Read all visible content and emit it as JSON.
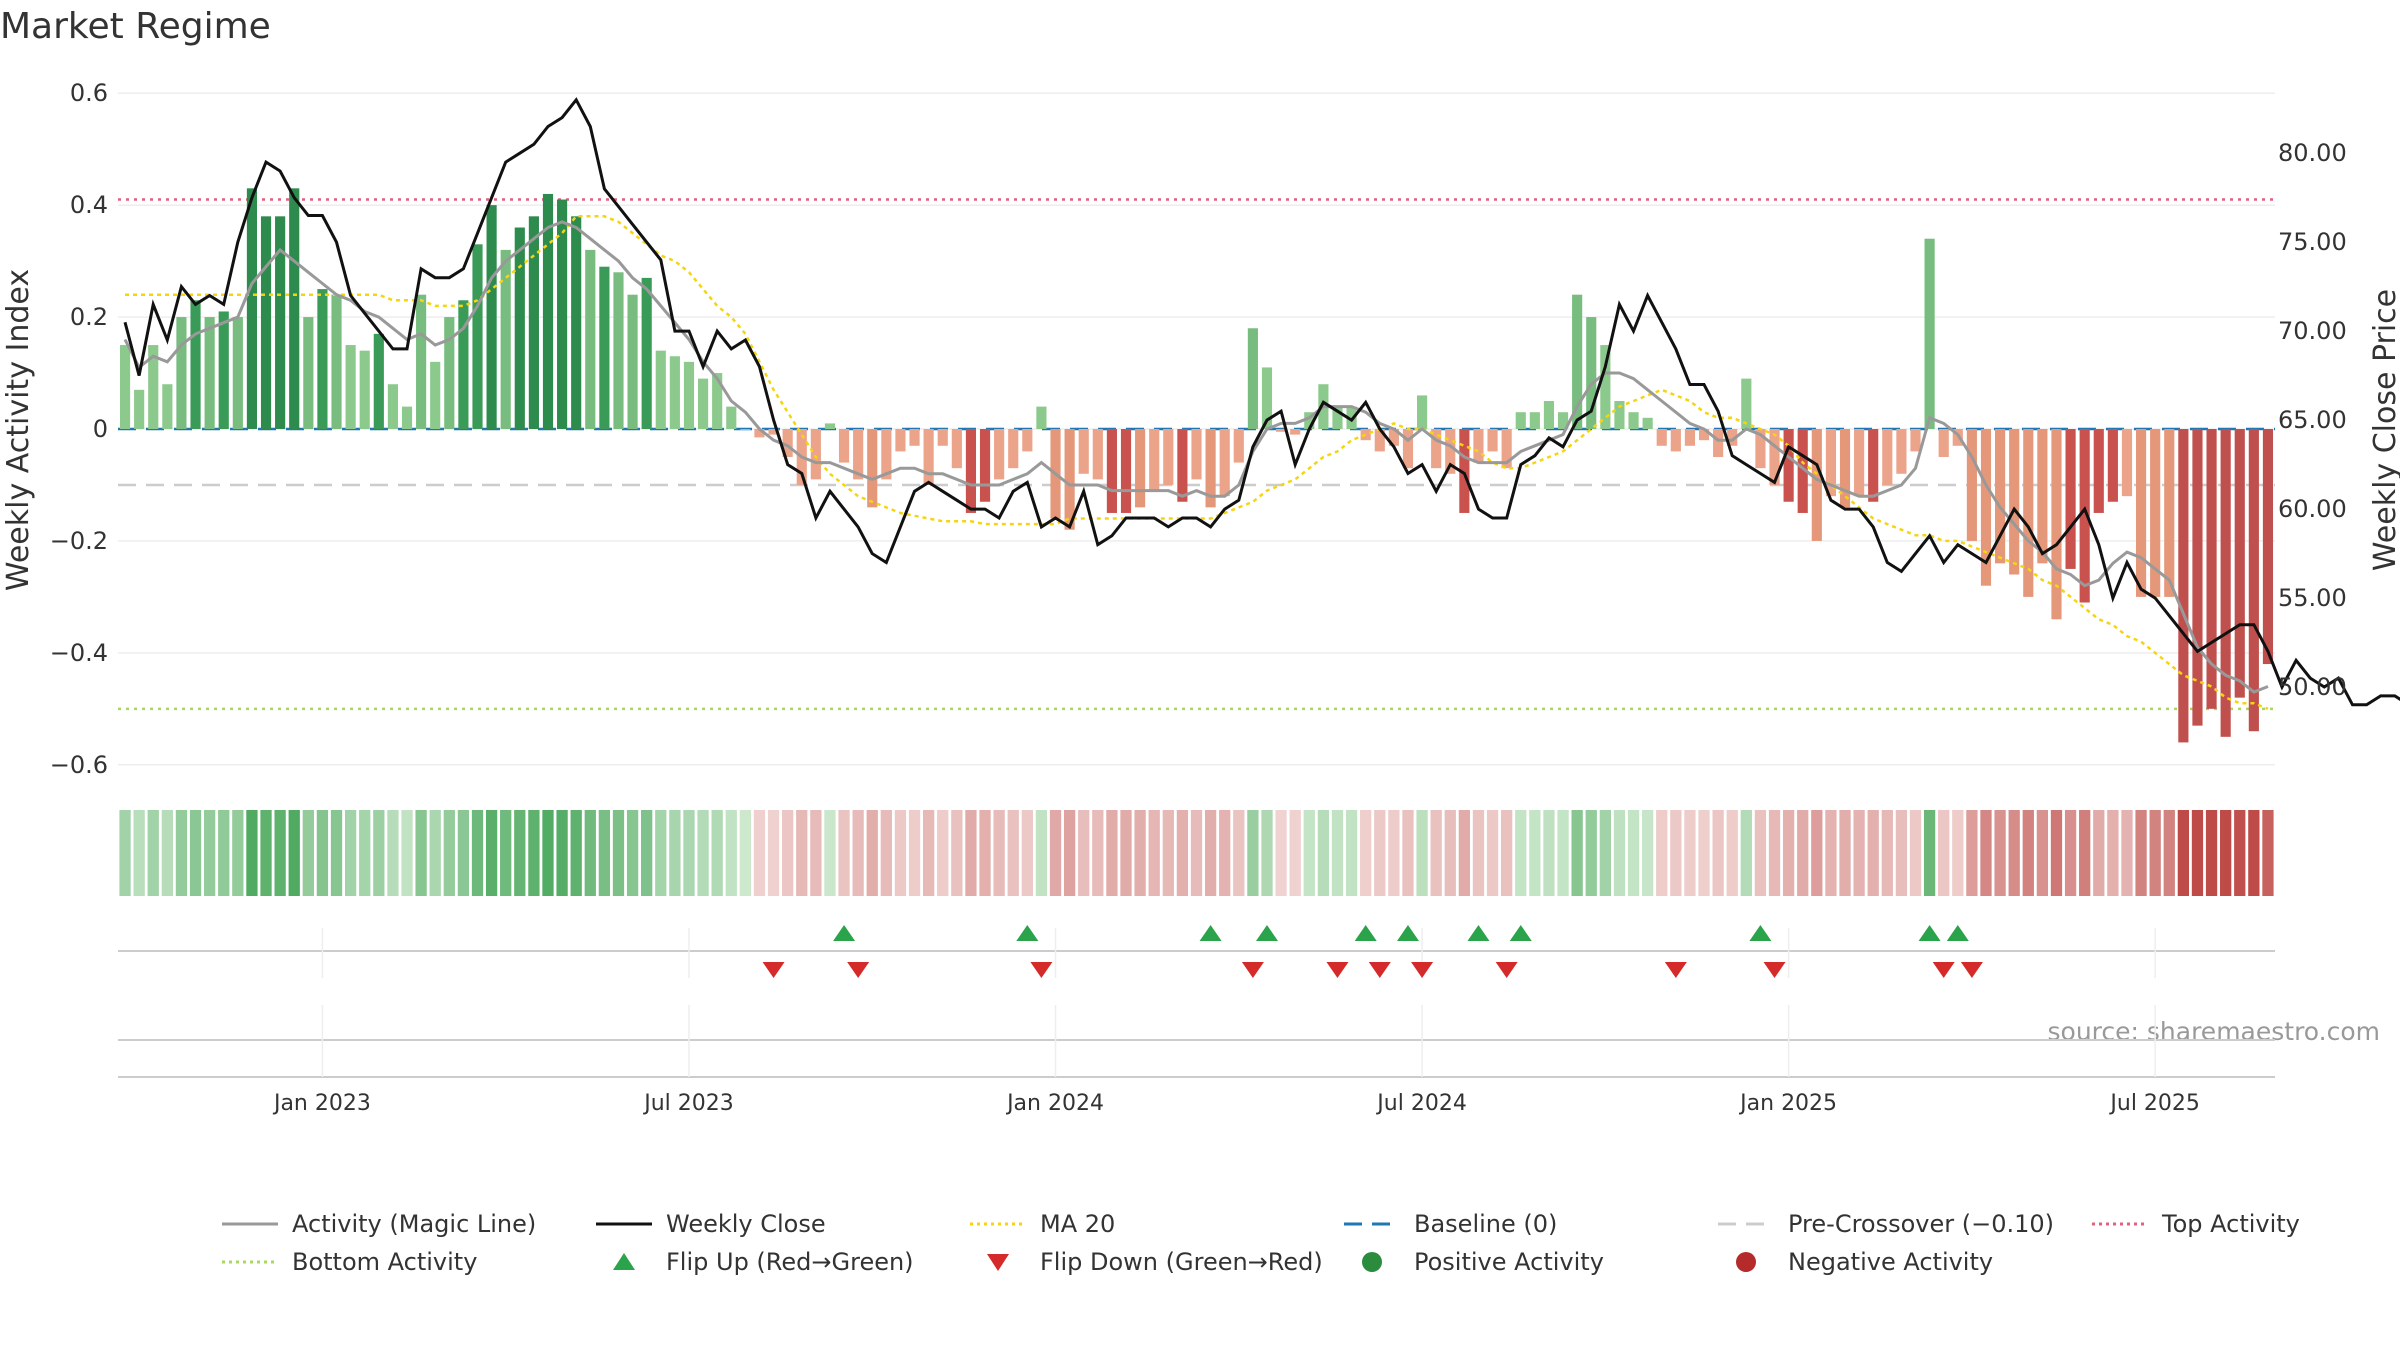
{
  "chart_data": {
    "type": "bar",
    "title": "Market Regime",
    "ylabel_left": "Weekly Activity Index",
    "ylabel_right": "Weekly Close Price",
    "source": "source: sharemaestro.com",
    "ylim_left": [
      -0.62,
      0.62
    ],
    "ylim_right": [
      45,
      84
    ],
    "yticks_left": [
      {
        "v": 0.6,
        "label": "0.6"
      },
      {
        "v": 0.4,
        "label": "0.4"
      },
      {
        "v": 0.2,
        "label": "0.2"
      },
      {
        "v": 0,
        "label": "0"
      },
      {
        "v": -0.2,
        "label": "−0.2"
      },
      {
        "v": -0.4,
        "label": "−0.4"
      },
      {
        "v": -0.6,
        "label": "−0.6"
      }
    ],
    "yticks_right": [
      {
        "v": 80,
        "label": "80.00"
      },
      {
        "v": 75,
        "label": "75.00"
      },
      {
        "v": 70,
        "label": "70.00"
      },
      {
        "v": 65,
        "label": "65.00"
      },
      {
        "v": 60,
        "label": "60.00"
      },
      {
        "v": 55,
        "label": "55.00"
      },
      {
        "v": 50,
        "label": "50.00"
      }
    ],
    "xticks": [
      {
        "i": 14,
        "label": "Jan 2023"
      },
      {
        "i": 40,
        "label": "Jul 2023"
      },
      {
        "i": 66,
        "label": "Jan 2024"
      },
      {
        "i": 92,
        "label": "Jul 2024"
      },
      {
        "i": 118,
        "label": "Jan 2025"
      },
      {
        "i": 144,
        "label": "Jul 2025"
      }
    ],
    "top_activity": 0.41,
    "bottom_activity": -0.5,
    "pre_crossover": -0.1,
    "baseline": 0,
    "activity": [
      0.15,
      0.07,
      0.15,
      0.08,
      0.2,
      0.23,
      0.2,
      0.21,
      0.2,
      0.43,
      0.38,
      0.38,
      0.43,
      0.2,
      0.25,
      0.24,
      0.15,
      0.14,
      0.17,
      0.08,
      0.04,
      0.24,
      0.12,
      0.2,
      0.23,
      0.33,
      0.4,
      0.32,
      0.36,
      0.38,
      0.42,
      0.41,
      0.38,
      0.32,
      0.29,
      0.28,
      0.24,
      0.27,
      0.14,
      0.13,
      0.12,
      0.09,
      0.1,
      0.04,
      0.0,
      -0.015,
      -0.01,
      -0.05,
      -0.1,
      -0.09,
      0.01,
      -0.06,
      -0.09,
      -0.14,
      -0.09,
      -0.04,
      -0.03,
      -0.1,
      -0.03,
      -0.07,
      -0.15,
      -0.13,
      -0.09,
      -0.07,
      -0.04,
      0.04,
      -0.16,
      -0.18,
      -0.08,
      -0.09,
      -0.15,
      -0.15,
      -0.14,
      -0.11,
      -0.1,
      -0.13,
      -0.09,
      -0.14,
      -0.12,
      -0.06,
      0.18,
      0.11,
      -0.005,
      -0.01,
      0.03,
      0.08,
      0.04,
      0.04,
      -0.02,
      -0.04,
      -0.03,
      -0.07,
      0.06,
      -0.07,
      -0.08,
      -0.15,
      -0.06,
      -0.04,
      -0.07,
      0.03,
      0.03,
      0.05,
      0.03,
      0.24,
      0.2,
      0.15,
      0.05,
      0.03,
      0.02,
      -0.03,
      -0.04,
      -0.03,
      -0.02,
      -0.05,
      -0.03,
      0.09,
      -0.07,
      -0.1,
      -0.13,
      -0.15,
      -0.2,
      -0.12,
      -0.14,
      -0.12,
      -0.13,
      -0.1,
      -0.08,
      -0.04,
      0.34,
      -0.05,
      -0.03,
      -0.2,
      -0.28,
      -0.24,
      -0.26,
      -0.3,
      -0.24,
      -0.34,
      -0.25,
      -0.31,
      -0.15,
      -0.13,
      -0.12,
      -0.3,
      -0.3,
      -0.3,
      -0.56,
      -0.53,
      -0.5,
      -0.55,
      -0.48,
      -0.54,
      -0.42
    ],
    "magic_line": [
      0.16,
      0.11,
      0.13,
      0.12,
      0.15,
      0.17,
      0.18,
      0.19,
      0.2,
      0.26,
      0.29,
      0.32,
      0.3,
      0.28,
      0.26,
      0.24,
      0.23,
      0.21,
      0.2,
      0.18,
      0.16,
      0.17,
      0.15,
      0.16,
      0.18,
      0.22,
      0.27,
      0.3,
      0.32,
      0.34,
      0.36,
      0.37,
      0.36,
      0.34,
      0.32,
      0.3,
      0.27,
      0.25,
      0.22,
      0.19,
      0.16,
      0.12,
      0.09,
      0.05,
      0.03,
      0.0,
      -0.02,
      -0.03,
      -0.05,
      -0.06,
      -0.06,
      -0.07,
      -0.08,
      -0.09,
      -0.08,
      -0.07,
      -0.07,
      -0.08,
      -0.08,
      -0.09,
      -0.1,
      -0.1,
      -0.1,
      -0.09,
      -0.08,
      -0.06,
      -0.08,
      -0.1,
      -0.1,
      -0.1,
      -0.11,
      -0.11,
      -0.11,
      -0.11,
      -0.11,
      -0.12,
      -0.11,
      -0.12,
      -0.12,
      -0.1,
      -0.04,
      0.0,
      0.01,
      0.01,
      0.02,
      0.04,
      0.04,
      0.04,
      0.03,
      0.01,
      0.0,
      -0.02,
      0.0,
      -0.02,
      -0.03,
      -0.05,
      -0.06,
      -0.06,
      -0.06,
      -0.04,
      -0.03,
      -0.02,
      -0.01,
      0.04,
      0.08,
      0.1,
      0.1,
      0.09,
      0.07,
      0.05,
      0.03,
      0.01,
      0.0,
      -0.02,
      -0.02,
      0.0,
      -0.01,
      -0.03,
      -0.05,
      -0.07,
      -0.09,
      -0.1,
      -0.11,
      -0.12,
      -0.12,
      -0.11,
      -0.1,
      -0.07,
      0.02,
      0.01,
      -0.01,
      -0.05,
      -0.1,
      -0.14,
      -0.17,
      -0.2,
      -0.22,
      -0.25,
      -0.26,
      -0.28,
      -0.27,
      -0.24,
      -0.22,
      -0.23,
      -0.25,
      -0.27,
      -0.33,
      -0.39,
      -0.42,
      -0.44,
      -0.45,
      -0.47,
      -0.46
    ],
    "ma20": [
      0.24,
      0.24,
      0.24,
      0.24,
      0.24,
      0.24,
      0.24,
      0.24,
      0.24,
      0.24,
      0.24,
      0.24,
      0.24,
      0.24,
      0.24,
      0.24,
      0.24,
      0.24,
      0.24,
      0.23,
      0.23,
      0.23,
      0.22,
      0.22,
      0.22,
      0.23,
      0.25,
      0.27,
      0.29,
      0.31,
      0.33,
      0.35,
      0.38,
      0.38,
      0.38,
      0.37,
      0.35,
      0.33,
      0.31,
      0.3,
      0.28,
      0.25,
      0.22,
      0.2,
      0.17,
      0.12,
      0.07,
      0.03,
      -0.01,
      -0.05,
      -0.08,
      -0.1,
      -0.12,
      -0.13,
      -0.14,
      -0.15,
      -0.155,
      -0.16,
      -0.165,
      -0.165,
      -0.165,
      -0.17,
      -0.17,
      -0.17,
      -0.17,
      -0.17,
      -0.17,
      -0.16,
      -0.16,
      -0.16,
      -0.16,
      -0.16,
      -0.16,
      -0.16,
      -0.16,
      -0.16,
      -0.16,
      -0.16,
      -0.15,
      -0.14,
      -0.13,
      -0.11,
      -0.1,
      -0.09,
      -0.07,
      -0.05,
      -0.04,
      -0.02,
      -0.01,
      0.0,
      0.01,
      0.0,
      0.0,
      -0.01,
      -0.02,
      -0.03,
      -0.04,
      -0.06,
      -0.07,
      -0.07,
      -0.06,
      -0.05,
      -0.04,
      -0.02,
      0.0,
      0.02,
      0.04,
      0.05,
      0.06,
      0.07,
      0.06,
      0.05,
      0.03,
      0.02,
      0.02,
      0.01,
      0.0,
      -0.01,
      -0.03,
      -0.06,
      -0.08,
      -0.1,
      -0.12,
      -0.14,
      -0.16,
      -0.17,
      -0.18,
      -0.19,
      -0.19,
      -0.2,
      -0.2,
      -0.21,
      -0.22,
      -0.23,
      -0.24,
      -0.25,
      -0.27,
      -0.28,
      -0.3,
      -0.32,
      -0.34,
      -0.35,
      -0.37,
      -0.38,
      -0.4,
      -0.42,
      -0.44,
      -0.45,
      -0.46,
      -0.48,
      -0.49,
      -0.49,
      -0.5
    ],
    "weekly_close": [
      70.5,
      67.5,
      71.5,
      69.5,
      72.5,
      71.5,
      72,
      71.5,
      75,
      77.5,
      79.5,
      79,
      77.5,
      76.5,
      76.5,
      75,
      72,
      71,
      70,
      69,
      69,
      73.5,
      73,
      73,
      73.5,
      75.5,
      77.5,
      79.5,
      80,
      80.5,
      81.5,
      82,
      83,
      81.5,
      78,
      77,
      76,
      75,
      74,
      70,
      70,
      68,
      70,
      69,
      69.5,
      68,
      65,
      62.5,
      62,
      59.5,
      61,
      60,
      59,
      57.5,
      57,
      59,
      61,
      61.5,
      61,
      60.5,
      60,
      60,
      59.5,
      61,
      61.5,
      59,
      59.5,
      59,
      61,
      58,
      58.5,
      59.5,
      59.5,
      59.5,
      59,
      59.5,
      59.5,
      59,
      60,
      60.5,
      63.5,
      65,
      65.5,
      62.5,
      64.5,
      66,
      65.5,
      65,
      66,
      64.5,
      63.5,
      62,
      62.5,
      61,
      62.5,
      62,
      60,
      59.5,
      59.5,
      62.5,
      63,
      64,
      63.5,
      65,
      65.5,
      68,
      71.5,
      70,
      72,
      70.5,
      69,
      67,
      67,
      65.5,
      63,
      62.5,
      62,
      61.5,
      63.5,
      63,
      62.5,
      60.5,
      60,
      60,
      59,
      57,
      56.5,
      57.5,
      58.5,
      57,
      58,
      57.5,
      57,
      58.5,
      60,
      59,
      57.5,
      58,
      59,
      60,
      58,
      55,
      57,
      55.5,
      55,
      54,
      53,
      52,
      52.5,
      53,
      53.5,
      53.5,
      52,
      50,
      51.5,
      50.5,
      50,
      50.5,
      49,
      49,
      49.5,
      49.5,
      49,
      48.5,
      50,
      49.5,
      50.5
    ],
    "flip_up_idx": [
      51,
      64,
      77,
      81,
      88,
      91,
      96,
      99,
      116,
      128,
      130
    ],
    "flip_down_idx": [
      46,
      52,
      65,
      80,
      86,
      89,
      92,
      98,
      110,
      117,
      129,
      131
    ]
  },
  "legend": [
    {
      "label": "Activity (Magic Line)",
      "kind": "line",
      "color": "#999999"
    },
    {
      "label": "Weekly Close",
      "kind": "line",
      "color": "#111111"
    },
    {
      "label": "MA 20",
      "kind": "dotted",
      "color": "#f5d50f"
    },
    {
      "label": "Baseline (0)",
      "kind": "dashed",
      "color": "#1f77b4"
    },
    {
      "label": "Pre-Crossover (−0.10)",
      "kind": "dashed",
      "color": "#cccccc"
    },
    {
      "label": "Top Activity",
      "kind": "dotted",
      "color": "#e06080"
    },
    {
      "label": "Bottom Activity",
      "kind": "dotted",
      "color": "#a8d860"
    },
    {
      "label": "Flip Up (Red→Green)",
      "kind": "up",
      "color": "#2aa34a"
    },
    {
      "label": "Flip Down (Green→Red)",
      "kind": "down",
      "color": "#d42a2a"
    },
    {
      "label": "Positive Activity",
      "kind": "dot",
      "color": "#2a8c3c"
    },
    {
      "label": "Negative Activity",
      "kind": "dot",
      "color": "#b52a2a"
    }
  ]
}
